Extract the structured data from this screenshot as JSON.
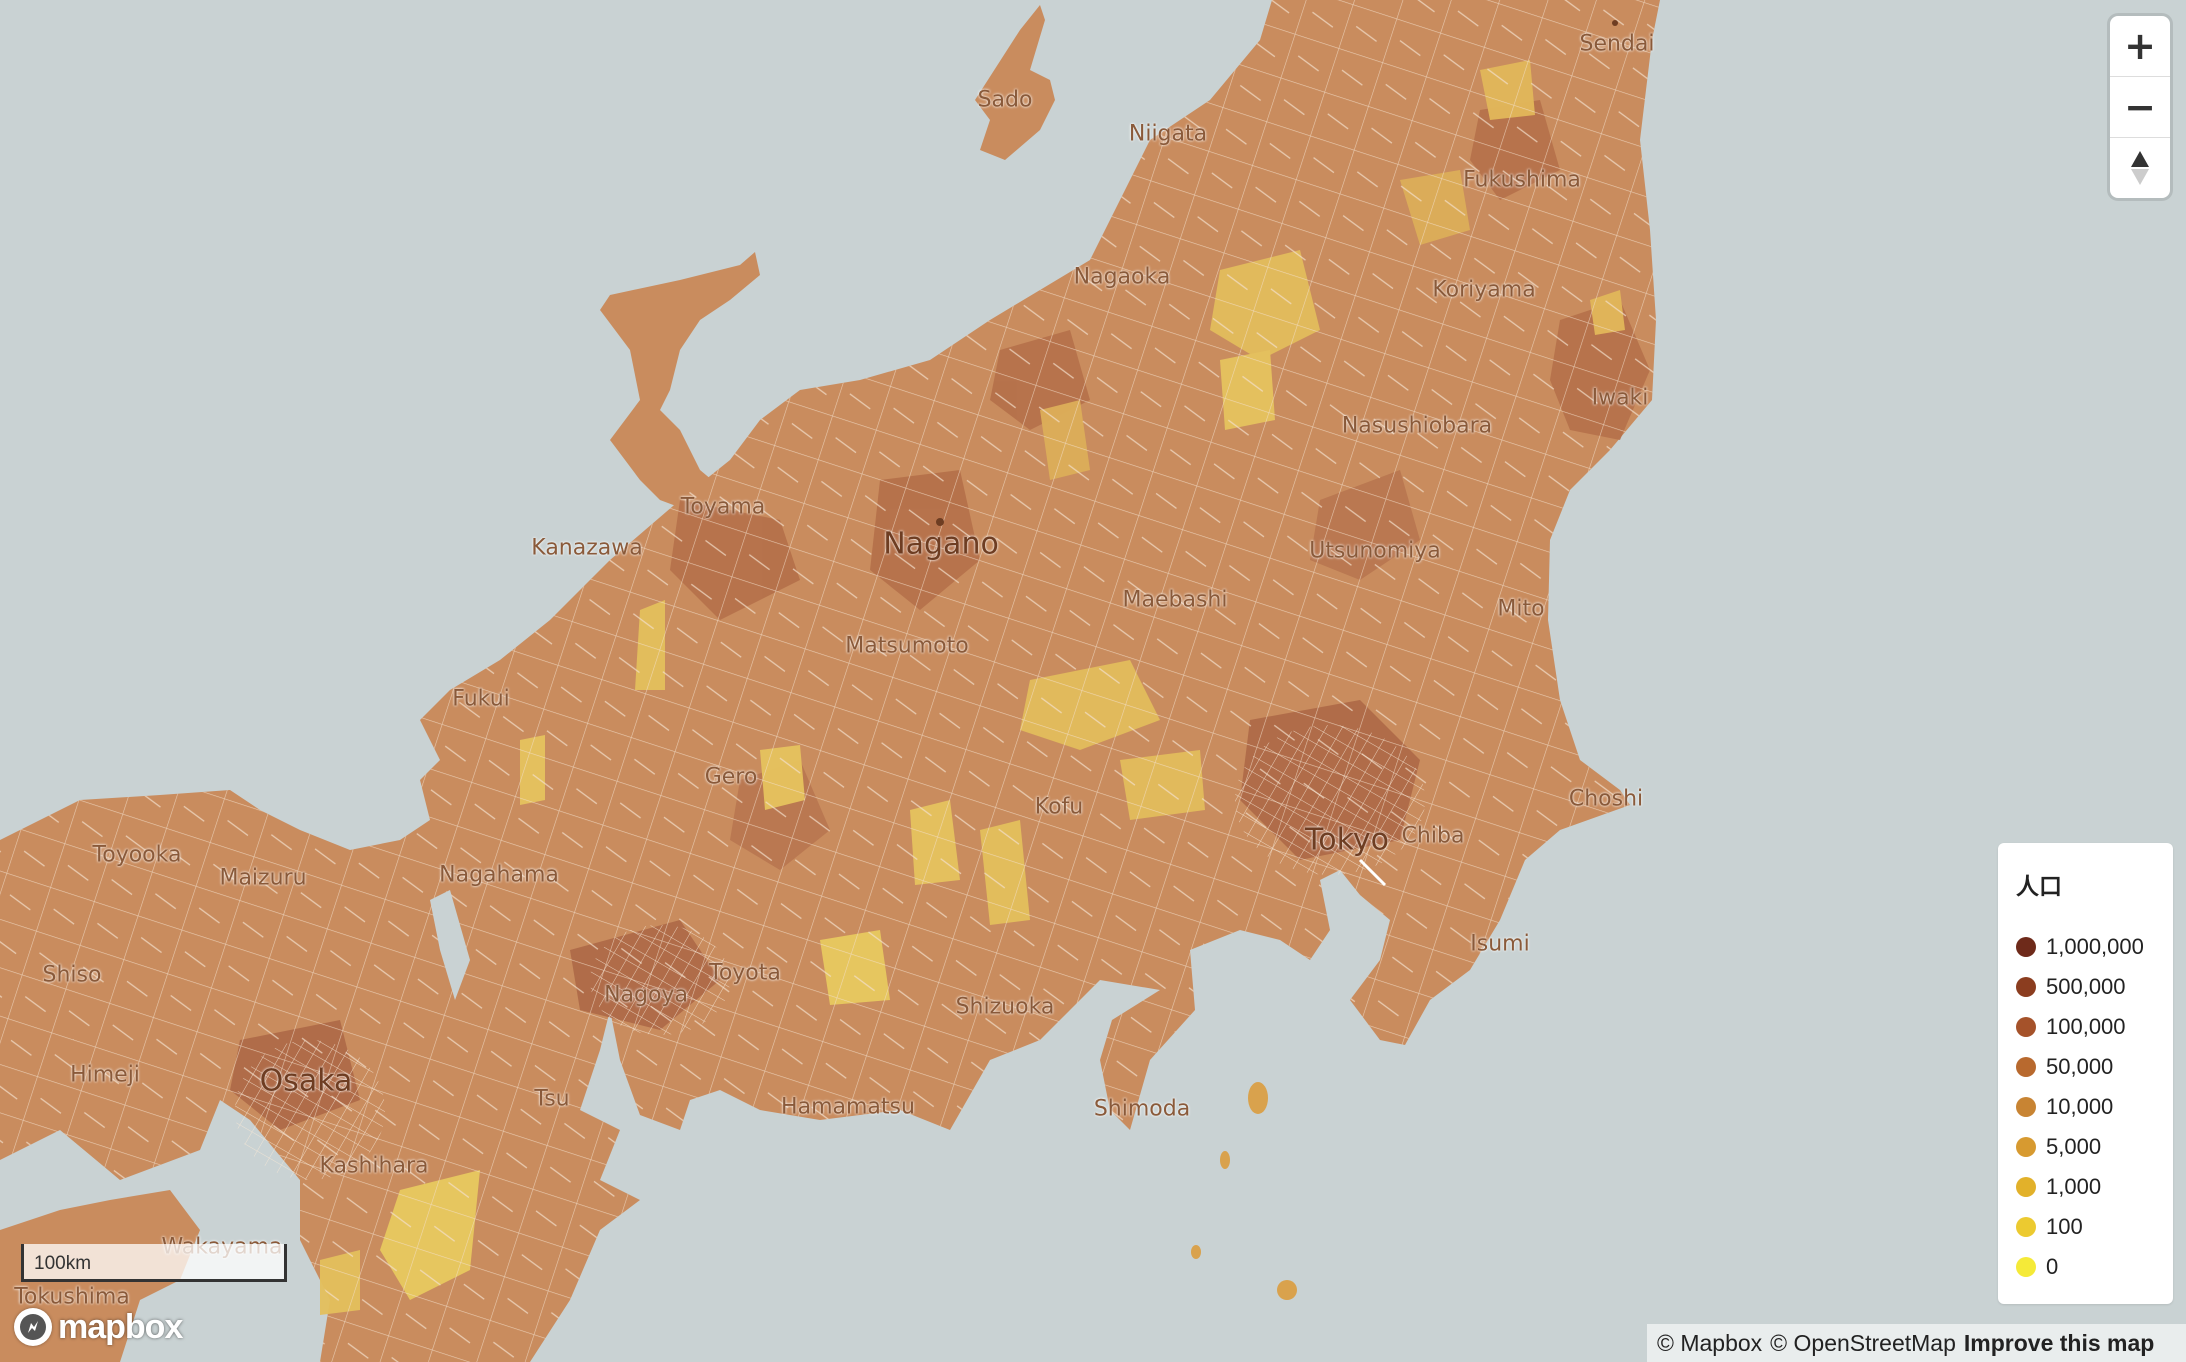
{
  "map": {
    "ocean_color": "#c9d2d3",
    "land_color": "#c98c5e",
    "boundary_color": "#f4e6d6",
    "labels": {
      "sado": "Sado",
      "sendai": "Sendai",
      "niigata": "Niigata",
      "fukushima": "Fukushima",
      "nagaoka": "Nagaoka",
      "koriyama": "Koriyama",
      "iwaki": "Iwaki",
      "nasushiobara": "Nasushiobara",
      "toyama": "Toyama",
      "kanazawa": "Kanazawa",
      "nagano": "Nagano",
      "utsunomiya": "Utsunomiya",
      "maebashi": "Maebashi",
      "mito": "Mito",
      "matsumoto": "Matsumoto",
      "fukui": "Fukui",
      "gero": "Gero",
      "kofu": "Kofu",
      "choshi": "Choshi",
      "tokyo": "Tokyo",
      "chiba": "Chiba",
      "toyooka": "Toyooka",
      "maizuru": "Maizuru",
      "nagahama": "Nagahama",
      "isumi": "Isumi",
      "shiso": "Shiso",
      "nagoya": "Nagoya",
      "toyota": "Toyota",
      "shizuoka": "Shizuoka",
      "himeji": "Himeji",
      "osaka": "Osaka",
      "tsu": "Tsu",
      "hamamatsu": "Hamamatsu",
      "shimoda": "Shimoda",
      "kashihara": "Kashihara",
      "wakayama": "Wakayama",
      "tokushima": "Tokushima"
    }
  },
  "controls": {
    "zoom_in": "+",
    "zoom_out": "−",
    "compass": "▲"
  },
  "legend": {
    "title": "人口",
    "items": [
      {
        "label": "1,000,000",
        "color": "#6e2a1a"
      },
      {
        "label": "500,000",
        "color": "#8b3d1f"
      },
      {
        "label": "100,000",
        "color": "#a5522a"
      },
      {
        "label": "50,000",
        "color": "#b8692e"
      },
      {
        "label": "10,000",
        "color": "#c88433"
      },
      {
        "label": "5,000",
        "color": "#d79a30"
      },
      {
        "label": "1,000",
        "color": "#e2b12a"
      },
      {
        "label": "100",
        "color": "#ecca30"
      },
      {
        "label": "0",
        "color": "#f5ea38"
      }
    ]
  },
  "scale": {
    "label": "100km"
  },
  "logo": {
    "text": "mapbox"
  },
  "attribution": {
    "mapbox": "© Mapbox",
    "osm": "© OpenStreetMap",
    "improve": "Improve this map"
  }
}
